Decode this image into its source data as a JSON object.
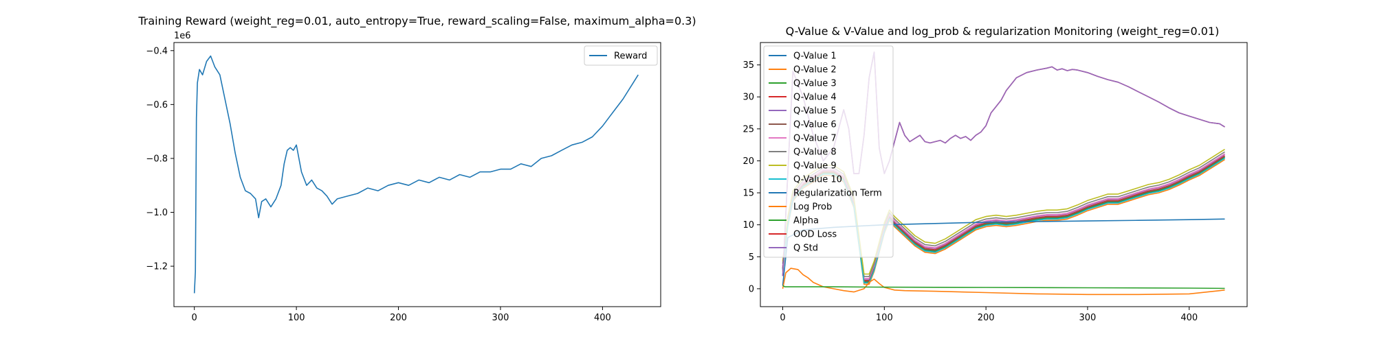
{
  "chart_data": [
    {
      "type": "line",
      "title": "Training Reward (weight_reg=0.01, auto_entropy=True, reward_scaling=False, maximum_alpha=0.3)",
      "xlabel": "",
      "ylabel": "",
      "y_offset_label": "1e6",
      "xlim": [
        -20,
        457
      ],
      "ylim": [
        -1.35,
        -0.37
      ],
      "x_ticks": [
        0,
        100,
        200,
        300,
        400
      ],
      "x_tick_labels": [
        "0",
        "100",
        "200",
        "300",
        "400"
      ],
      "y_ticks": [
        -1.2,
        -1.0,
        -0.8,
        -0.6,
        -0.4
      ],
      "y_tick_labels": [
        "−1.2",
        "−1.0",
        "−0.8",
        "−0.6",
        "−0.4"
      ],
      "grid": false,
      "legend_position": "top-right",
      "series": [
        {
          "name": "Reward",
          "color": "#1f77b4",
          "x": [
            0,
            1,
            2,
            3,
            5,
            8,
            12,
            16,
            20,
            25,
            30,
            35,
            40,
            45,
            50,
            55,
            60,
            63,
            66,
            70,
            75,
            80,
            85,
            88,
            91,
            94,
            97,
            100,
            105,
            110,
            115,
            120,
            125,
            130,
            135,
            140,
            150,
            160,
            170,
            180,
            190,
            200,
            210,
            220,
            230,
            240,
            250,
            260,
            270,
            280,
            290,
            300,
            310,
            320,
            330,
            340,
            350,
            360,
            370,
            380,
            390,
            400,
            410,
            420,
            430,
            435
          ],
          "y": [
            -1.3,
            -1.22,
            -0.65,
            -0.52,
            -0.47,
            -0.49,
            -0.44,
            -0.42,
            -0.46,
            -0.49,
            -0.58,
            -0.67,
            -0.78,
            -0.87,
            -0.92,
            -0.93,
            -0.95,
            -1.02,
            -0.96,
            -0.95,
            -0.98,
            -0.95,
            -0.9,
            -0.82,
            -0.77,
            -0.76,
            -0.77,
            -0.75,
            -0.85,
            -0.9,
            -0.88,
            -0.91,
            -0.92,
            -0.94,
            -0.97,
            -0.95,
            -0.94,
            -0.93,
            -0.91,
            -0.92,
            -0.9,
            -0.89,
            -0.9,
            -0.88,
            -0.89,
            -0.87,
            -0.88,
            -0.86,
            -0.87,
            -0.85,
            -0.85,
            -0.84,
            -0.84,
            -0.82,
            -0.83,
            -0.8,
            -0.79,
            -0.77,
            -0.75,
            -0.74,
            -0.72,
            -0.68,
            -0.63,
            -0.58,
            -0.52,
            -0.49
          ]
        }
      ]
    },
    {
      "type": "line",
      "title": "Q-Value & V-Value and log_prob & regularization Monitoring (weight_reg=0.01)",
      "xlabel": "",
      "ylabel": "",
      "xlim": [
        -22,
        457
      ],
      "ylim": [
        -2.8,
        38.5
      ],
      "x_ticks": [
        0,
        100,
        200,
        300,
        400
      ],
      "x_tick_labels": [
        "0",
        "100",
        "200",
        "300",
        "400"
      ],
      "y_ticks": [
        0,
        5,
        10,
        15,
        20,
        25,
        30,
        35
      ],
      "y_tick_labels": [
        "0",
        "5",
        "10",
        "15",
        "20",
        "25",
        "30",
        "35"
      ],
      "grid": false,
      "legend_position": "top-left",
      "q_base": {
        "x": [
          0,
          5,
          10,
          20,
          30,
          40,
          50,
          60,
          70,
          75,
          80,
          85,
          90,
          95,
          100,
          105,
          110,
          120,
          130,
          140,
          150,
          160,
          170,
          180,
          190,
          200,
          210,
          220,
          230,
          240,
          250,
          260,
          270,
          280,
          290,
          300,
          310,
          320,
          330,
          340,
          350,
          360,
          370,
          380,
          390,
          400,
          410,
          420,
          430,
          435
        ],
        "y": [
          3,
          10,
          14,
          16,
          17,
          18,
          18,
          17,
          13,
          7,
          1,
          1,
          3,
          6,
          9,
          11,
          10,
          8.5,
          7,
          6,
          5.8,
          6.5,
          7.5,
          8.5,
          9.5,
          10,
          10.2,
          10,
          10.2,
          10.5,
          10.8,
          11,
          11,
          11.2,
          11.8,
          12.5,
          13,
          13.5,
          13.5,
          14,
          14.5,
          15,
          15.3,
          15.8,
          16.5,
          17.3,
          18,
          19,
          20,
          20.5
        ]
      },
      "series": [
        {
          "name": "Q-Value 1",
          "color": "#1f77b4",
          "offset": 0.0
        },
        {
          "name": "Q-Value 2",
          "color": "#ff7f0e",
          "offset": -0.3
        },
        {
          "name": "Q-Value 3",
          "color": "#2ca02c",
          "offset": 0.1
        },
        {
          "name": "Q-Value 4",
          "color": "#d62728",
          "offset": 0.3
        },
        {
          "name": "Q-Value 5",
          "color": "#9467bd",
          "offset": 0.5
        },
        {
          "name": "Q-Value 6",
          "color": "#8c564b",
          "offset": 0.2
        },
        {
          "name": "Q-Value 7",
          "color": "#e377c2",
          "offset": 0.6
        },
        {
          "name": "Q-Value 8",
          "color": "#7f7f7f",
          "offset": 0.9
        },
        {
          "name": "Q-Value 9",
          "color": "#bcbd22",
          "offset": 1.3
        },
        {
          "name": "Q-Value 10",
          "color": "#17becf",
          "offset": -0.1
        },
        {
          "name": "Regularization Term",
          "color": "#1f77b4",
          "x": [
            0,
            5,
            20,
            50,
            100,
            150,
            200,
            250,
            300,
            350,
            400,
            435
          ],
          "y": [
            0.5,
            8,
            9.2,
            9.6,
            10,
            10.2,
            10.4,
            10.5,
            10.6,
            10.7,
            10.8,
            10.9
          ]
        },
        {
          "name": "Log Prob",
          "color": "#ff7f0e",
          "x": [
            0,
            3,
            8,
            15,
            20,
            25,
            30,
            40,
            50,
            60,
            70,
            80,
            85,
            90,
            95,
            100,
            110,
            120,
            150,
            200,
            250,
            300,
            350,
            400,
            430,
            435
          ],
          "y": [
            0,
            2.5,
            3.2,
            3.0,
            2.2,
            1.7,
            1.0,
            0.3,
            0.0,
            -0.3,
            -0.5,
            0.0,
            1.0,
            1.5,
            0.8,
            0.2,
            -0.2,
            -0.3,
            -0.4,
            -0.6,
            -0.8,
            -0.9,
            -0.9,
            -0.8,
            -0.3,
            -0.2
          ]
        },
        {
          "name": "Alpha",
          "color": "#2ca02c",
          "x": [
            0,
            2,
            50,
            100,
            200,
            300,
            400,
            435
          ],
          "y": [
            0.5,
            0.3,
            0.3,
            0.25,
            0.2,
            0.15,
            0.1,
            0.05
          ]
        },
        {
          "name": "OOD Loss",
          "color": "#d62728",
          "x": [
            0,
            10,
            20,
            30,
            40,
            50,
            60,
            65,
            70,
            75,
            80,
            85,
            90,
            95,
            100,
            105,
            110,
            115,
            120,
            125,
            130,
            135,
            140,
            145,
            150,
            155,
            160,
            165,
            170,
            175,
            180,
            185,
            190,
            195,
            200,
            205,
            210,
            215,
            220,
            225,
            230,
            240,
            250,
            260,
            265,
            270,
            275,
            280,
            285,
            290,
            300,
            310,
            320,
            330,
            340,
            350,
            360,
            370,
            380,
            390,
            400,
            410,
            420,
            430,
            435
          ],
          "y": [
            2,
            34,
            30,
            24,
            20,
            22,
            28,
            25,
            18,
            18,
            24,
            33,
            37,
            22,
            18,
            20,
            23,
            26,
            24,
            23,
            23.5,
            24,
            23,
            22.8,
            23,
            23.2,
            22.8,
            23.5,
            24,
            23.5,
            23.8,
            23.2,
            24,
            24.5,
            25.5,
            27.5,
            28.5,
            29.5,
            31,
            32,
            33,
            33.8,
            34.2,
            34.5,
            34.7,
            34.2,
            34.4,
            34.1,
            34.3,
            34.2,
            33.8,
            33.2,
            32.7,
            32.3,
            31.6,
            30.8,
            30,
            29.2,
            28.3,
            27.5,
            27,
            26.5,
            26,
            25.8,
            25.3
          ]
        },
        {
          "name": "Q Std",
          "color": "#9467bd",
          "copy_of": "OOD Loss"
        }
      ]
    }
  ]
}
